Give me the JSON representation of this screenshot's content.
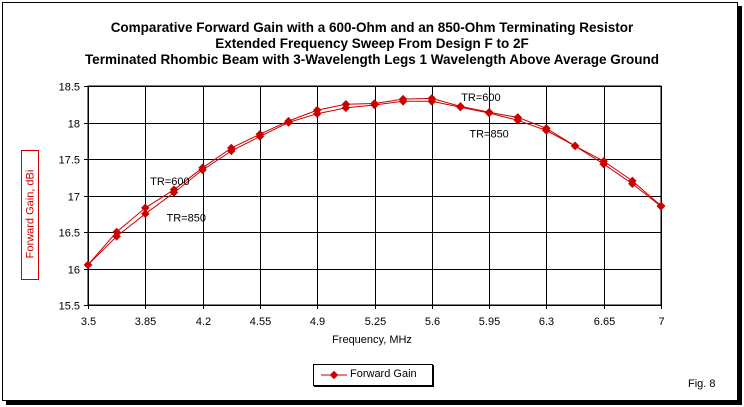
{
  "title_lines": [
    "Comparative Forward Gain with a 600-Ohm and an 850-Ohm Terminating Resistor",
    "Extended Frequency Sweep From Design F to 2F",
    "Terminated Rhombic Beam with 3-Wavelength Legs 1 Wavelength Above Average Ground"
  ],
  "figure_label": "Fig. 8",
  "legend_label": "Forward Gain",
  "chart_data": {
    "type": "line",
    "title": "Comparative Forward Gain with a 600-Ohm and an 850-Ohm Terminating Resistor / Extended Frequency Sweep From Design F to 2F / Terminated Rhombic Beam with 3-Wavelength Legs 1 Wavelength Above Average Ground",
    "xlabel": "Frequency, MHz",
    "ylabel": "Forward Gain,  dBi",
    "xlim": [
      3.5,
      7
    ],
    "ylim": [
      15.5,
      18.5
    ],
    "x_ticks": [
      "3.5",
      "3.85",
      "4.2",
      "4.55",
      "4.9",
      "5.25",
      "5.6",
      "5.95",
      "6.3",
      "6.65",
      "7"
    ],
    "y_ticks": [
      "15.5",
      "16",
      "16.5",
      "17",
      "17.5",
      "18",
      "18.5"
    ],
    "grid": true,
    "legend_position": "bottom",
    "series_color": "#cc0000",
    "series": [
      {
        "name": "TR=600",
        "x": [
          3.5,
          3.675,
          3.85,
          4.025,
          4.2,
          4.375,
          4.55,
          4.725,
          4.9,
          5.075,
          5.25,
          5.425,
          5.6,
          5.775,
          5.95,
          6.125,
          6.3,
          6.475,
          6.65,
          6.825,
          7
        ],
        "y": [
          16.05,
          16.5,
          16.83,
          17.08,
          17.38,
          17.65,
          17.84,
          18.02,
          18.17,
          18.25,
          18.26,
          18.32,
          18.33,
          18.22,
          18.14,
          18.07,
          17.92,
          17.68,
          17.47,
          17.2,
          16.86
        ]
      },
      {
        "name": "TR=850",
        "x": [
          3.5,
          3.675,
          3.85,
          4.025,
          4.2,
          4.375,
          4.55,
          4.725,
          4.9,
          5.075,
          5.25,
          5.425,
          5.6,
          5.775,
          5.95,
          6.125,
          6.3,
          6.475,
          6.65,
          6.825,
          7
        ],
        "y": [
          16.05,
          16.44,
          16.75,
          17.04,
          17.35,
          17.61,
          17.81,
          18.0,
          18.12,
          18.2,
          18.24,
          18.29,
          18.29,
          18.21,
          18.13,
          18.03,
          17.89,
          17.68,
          17.43,
          17.16,
          16.85
        ]
      }
    ],
    "annotations": [
      {
        "text": "TR=600",
        "x": 4.0,
        "y": 17.2
      },
      {
        "text": "TR=850",
        "x": 4.1,
        "y": 16.7
      },
      {
        "text": "TR=600",
        "x": 5.9,
        "y": 18.35
      },
      {
        "text": "TR=850",
        "x": 5.95,
        "y": 17.85
      }
    ]
  }
}
